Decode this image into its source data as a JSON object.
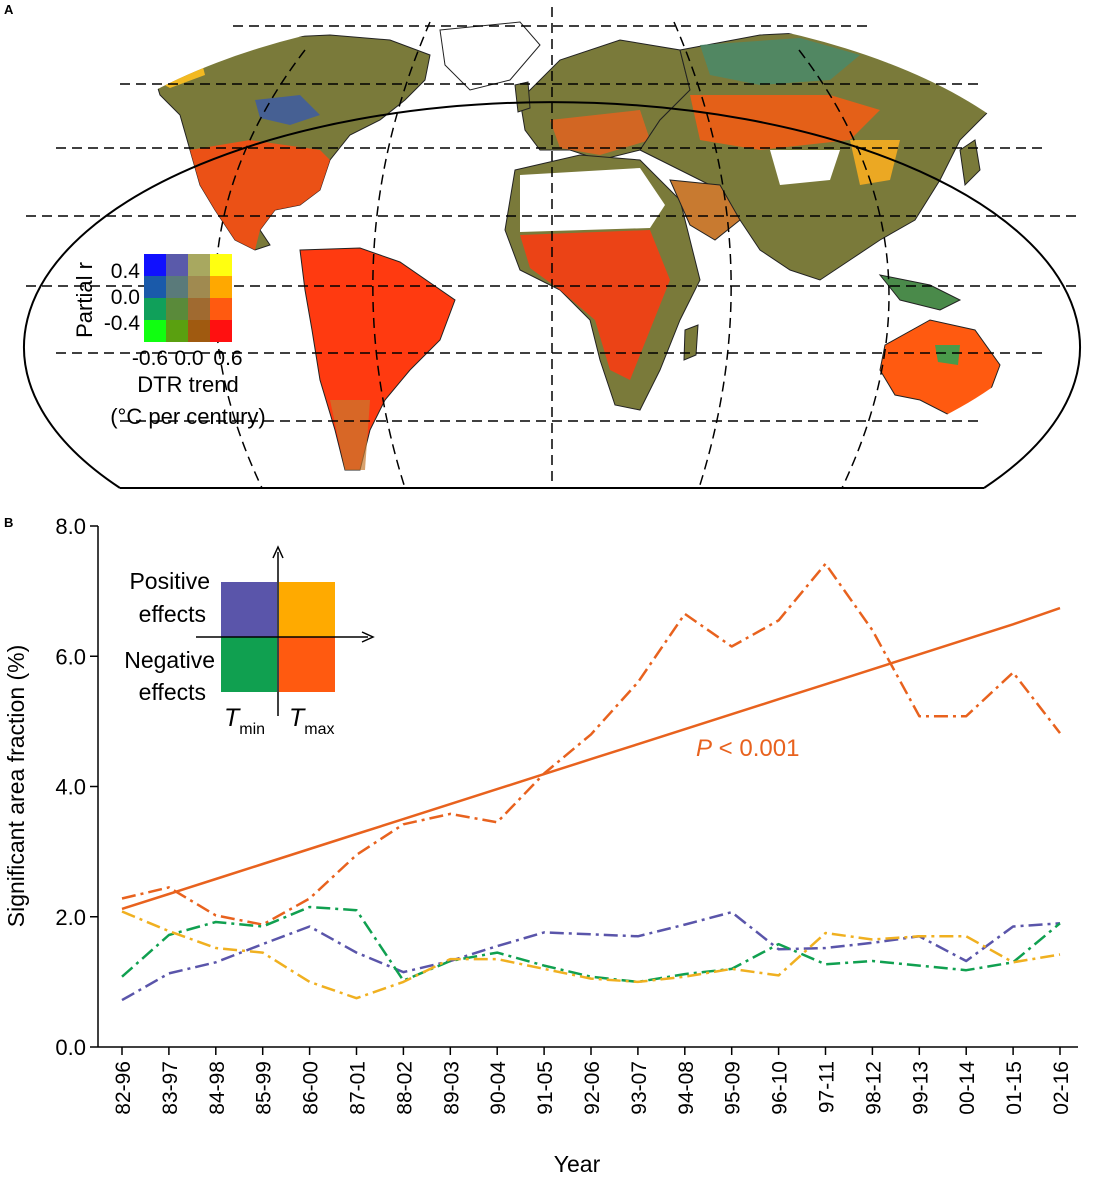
{
  "panel_a": {
    "label": "A",
    "legend": {
      "ylabel": "Partial r",
      "yticks": [
        "0.4",
        "0.0",
        "-0.4"
      ],
      "xticks": [
        "-0.6",
        "0.0",
        "0.6"
      ],
      "xlabel_line1": "DTR trend",
      "xlabel_line2": "(°C per century)",
      "grid_colors": [
        [
          "#1010ff",
          "#5a5aaa",
          "#a8a860",
          "#ffff10"
        ],
        [
          "#1a5aaa",
          "#5a7a7a",
          "#a08a50",
          "#ffa800"
        ],
        [
          "#10a05a",
          "#5a8a3a",
          "#a06a30",
          "#ff5a10"
        ],
        [
          "#10ff10",
          "#5aa010",
          "#a05a10",
          "#ff1010"
        ]
      ]
    },
    "map_colors": {
      "land_base": "#7a7a3a",
      "warm": "#ff3a10",
      "orange": "#e86a20",
      "yellow": "#ffc020",
      "green": "#4a8a4a",
      "blue": "#3a5aaa",
      "desert": "#ffffff"
    }
  },
  "panel_b": {
    "label": "B",
    "inset": {
      "positive_line1": "Positive",
      "positive_line2": "effects",
      "negative_line1": "Negative",
      "negative_line2": "effects",
      "tmin_main": "T",
      "tmin_sub": "min",
      "tmax_main": "T",
      "tmax_sub": "max",
      "colors": {
        "tmin_pos": "#5a55aa",
        "tmax_pos": "#ffaa00",
        "tmin_neg": "#10a050",
        "tmax_neg": "#ff5a10"
      }
    },
    "annotation": {
      "italic": "P",
      "rest": " < 0.001",
      "color": "#e8621e"
    }
  },
  "chart_data": {
    "type": "line",
    "title": "",
    "xlabel": "Year",
    "ylabel": "Significant area fraction (%)",
    "ylim": [
      0,
      8
    ],
    "yticks": [
      "0.0",
      "2.0",
      "4.0",
      "6.0",
      "8.0"
    ],
    "categories": [
      "82-96",
      "83-97",
      "84-98",
      "85-99",
      "86-00",
      "87-01",
      "88-02",
      "89-03",
      "90-04",
      "91-05",
      "92-06",
      "93-07",
      "94-08",
      "95-09",
      "96-10",
      "97-11",
      "98-12",
      "99-13",
      "00-14",
      "01-15",
      "02-16"
    ],
    "series": [
      {
        "name": "Tmax negative effects",
        "color": "#e8621e",
        "style": "dashdot",
        "values": [
          2.28,
          2.45,
          2.02,
          1.88,
          2.28,
          2.95,
          3.42,
          3.58,
          3.45,
          4.2,
          4.8,
          5.6,
          6.65,
          6.15,
          6.55,
          7.42,
          6.4,
          5.08,
          5.08,
          5.75,
          4.82
        ]
      },
      {
        "name": "Tmax negative trend",
        "color": "#e8621e",
        "style": "solid",
        "values": [
          2.12,
          2.35,
          2.58,
          2.81,
          3.04,
          3.27,
          3.5,
          3.73,
          3.96,
          4.19,
          4.42,
          4.65,
          4.88,
          5.11,
          5.34,
          5.57,
          5.8,
          6.03,
          6.26,
          6.49,
          6.74
        ]
      },
      {
        "name": "Tmin positive effects",
        "color": "#5a55aa",
        "style": "dashdot",
        "values": [
          0.72,
          1.13,
          1.3,
          1.58,
          1.85,
          1.45,
          1.15,
          1.32,
          1.55,
          1.76,
          1.73,
          1.7,
          1.88,
          2.07,
          1.5,
          1.52,
          1.6,
          1.7,
          1.32,
          1.85,
          1.9
        ]
      },
      {
        "name": "Tmin negative effects",
        "color": "#10a050",
        "style": "dashdot",
        "values": [
          1.08,
          1.72,
          1.92,
          1.85,
          2.15,
          2.1,
          1.02,
          1.32,
          1.45,
          1.25,
          1.08,
          1.0,
          1.12,
          1.2,
          1.58,
          1.27,
          1.32,
          1.25,
          1.18,
          1.3,
          1.9
        ]
      },
      {
        "name": "Tmax positive effects",
        "color": "#f0b020",
        "style": "dashdot",
        "values": [
          2.08,
          1.78,
          1.52,
          1.45,
          1.0,
          0.75,
          1.0,
          1.35,
          1.35,
          1.2,
          1.05,
          1.0,
          1.08,
          1.2,
          1.1,
          1.75,
          1.65,
          1.7,
          1.7,
          1.3,
          1.42
        ]
      }
    ]
  }
}
